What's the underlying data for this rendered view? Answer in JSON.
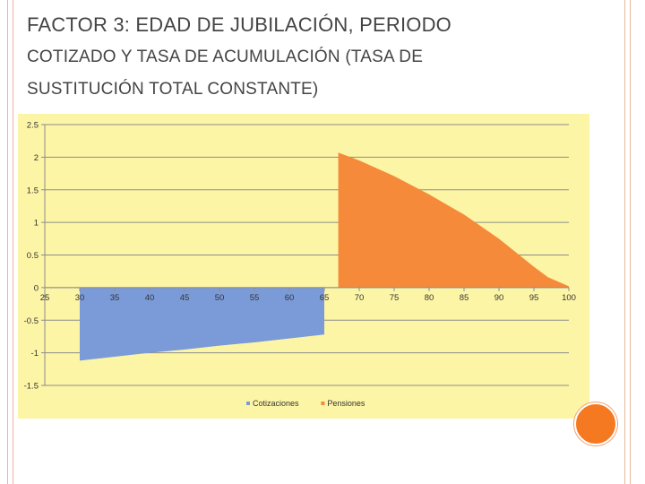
{
  "slide": {
    "title_line1": "FACTOR 3: EDAD DE JUBILACIÓN, PERIODO",
    "title_line2": "COTIZADO Y TASA DE ACUMULACIÓN (TASA DE",
    "title_line3": "SUSTITUCIÓN TOTAL CONSTANTE)"
  },
  "colors": {
    "chart_background": "#fdf5a6",
    "cotizaciones": "#7b9bd8",
    "pensiones": "#f58a3a",
    "accent": "#f47920"
  },
  "chart_data": {
    "type": "area",
    "title": "",
    "xlabel": "",
    "ylabel": "",
    "xlim": [
      25,
      100
    ],
    "ylim": [
      -1.5,
      2.5
    ],
    "x_ticks": [
      "25",
      "30",
      "35",
      "40",
      "45",
      "50",
      "55",
      "60",
      "65",
      "70",
      "75",
      "80",
      "85",
      "90",
      "95",
      "100"
    ],
    "y_ticks": [
      "2.5",
      "2",
      "1.5",
      "1",
      "0.5",
      "0",
      "-0.5",
      "-1",
      "-1.5"
    ],
    "grid": true,
    "legend_position": "bottom",
    "series": [
      {
        "name": "Cotizaciones",
        "x": [
          30,
          35,
          40,
          45,
          50,
          55,
          60,
          65
        ],
        "y": [
          -1.12,
          -1.06,
          -1.0,
          -0.95,
          -0.89,
          -0.84,
          -0.78,
          -0.72
        ]
      },
      {
        "name": "Pensiones",
        "x": [
          67,
          70,
          75,
          80,
          85,
          90,
          95,
          97,
          100
        ],
        "y": [
          2.07,
          1.95,
          1.71,
          1.43,
          1.12,
          0.75,
          0.32,
          0.16,
          0.02
        ]
      }
    ]
  }
}
